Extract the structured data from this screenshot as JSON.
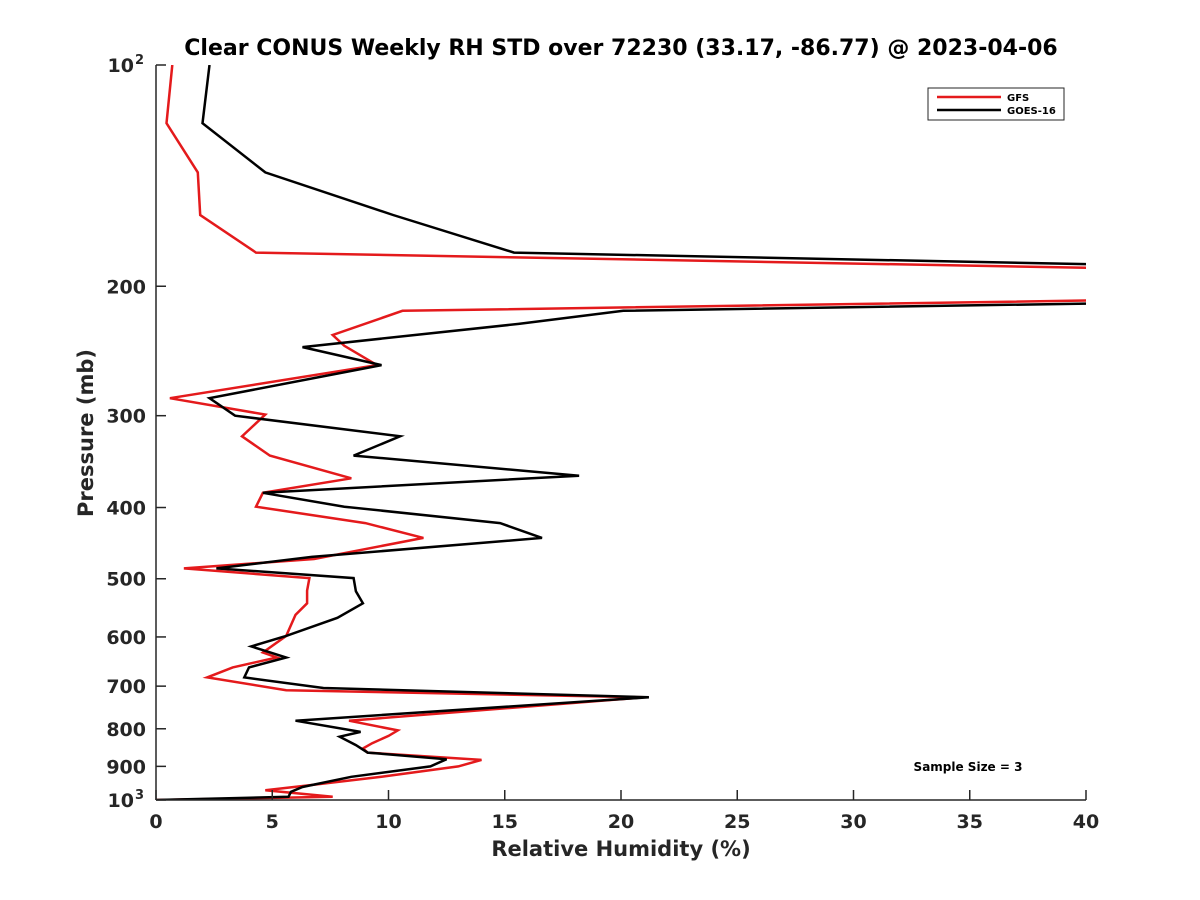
{
  "chart_data": {
    "type": "line",
    "title": "Clear CONUS Weekly RH STD over 72230 (33.17, -86.77) @ 2023-04-06",
    "xlabel": "Relative Humidity (%)",
    "ylabel": "Pressure (mb)",
    "xlim": [
      0,
      40
    ],
    "ylim": [
      100,
      1000
    ],
    "yscale": "log",
    "yreversed": true,
    "grid": false,
    "legend_position": "top-right",
    "xticks": [
      "0",
      "5",
      "10",
      "15",
      "20",
      "25",
      "30",
      "35",
      "40"
    ],
    "xtick_values": [
      0,
      5,
      10,
      15,
      20,
      25,
      30,
      35,
      40
    ],
    "yticks": [
      {
        "value": 100,
        "base": "10",
        "exp": "2"
      },
      {
        "value": 200,
        "label": "200"
      },
      {
        "value": 300,
        "label": "300"
      },
      {
        "value": 400,
        "label": "400"
      },
      {
        "value": 500,
        "label": "500"
      },
      {
        "value": 600,
        "label": "600"
      },
      {
        "value": 700,
        "label": "700"
      },
      {
        "value": 800,
        "label": "800"
      },
      {
        "value": 900,
        "label": "900"
      },
      {
        "value": 1000,
        "base": "10",
        "exp": "3"
      }
    ],
    "annotation": "Sample Size = 3",
    "series": [
      {
        "name": "GFS",
        "color": "#e41a1c",
        "points": [
          [
            0.7,
            100
          ],
          [
            0.45,
            120
          ],
          [
            1.8,
            140
          ],
          [
            1.9,
            160
          ],
          [
            4.3,
            180
          ],
          [
            45,
            190
          ],
          [
            45,
            208
          ],
          [
            10.6,
            216
          ],
          [
            7.6,
            233
          ],
          [
            8.1,
            241
          ],
          [
            9.5,
            256
          ],
          [
            0.6,
            284
          ],
          [
            4.7,
            299
          ],
          [
            3.7,
            320
          ],
          [
            4.9,
            340
          ],
          [
            8.4,
            365
          ],
          [
            4.6,
            382
          ],
          [
            4.3,
            399
          ],
          [
            9.0,
            420
          ],
          [
            11.5,
            440
          ],
          [
            6.8,
            470
          ],
          [
            1.2,
            484
          ],
          [
            6.6,
            499
          ],
          [
            6.5,
            519
          ],
          [
            6.5,
            540
          ],
          [
            6.0,
            560
          ],
          [
            5.6,
            598
          ],
          [
            4.6,
            630
          ],
          [
            5.2,
            640
          ],
          [
            3.3,
            660
          ],
          [
            2.2,
            681
          ],
          [
            5.6,
            709
          ],
          [
            21.0,
            725
          ],
          [
            8.3,
            780
          ],
          [
            10.4,
            804
          ],
          [
            10.0,
            818
          ],
          [
            9.3,
            837
          ],
          [
            8.9,
            851
          ],
          [
            9.1,
            862
          ],
          [
            14.0,
            882
          ],
          [
            13.0,
            900
          ],
          [
            9.7,
            930
          ],
          [
            6.6,
            955
          ],
          [
            4.7,
            970
          ],
          [
            7.6,
            990
          ],
          [
            0,
            1000
          ]
        ]
      },
      {
        "name": "GOES-16",
        "color": "#000000",
        "points": [
          [
            2.3,
            100
          ],
          [
            2.0,
            120
          ],
          [
            4.7,
            140
          ],
          [
            10.2,
            160
          ],
          [
            15.4,
            180
          ],
          [
            45,
            188
          ],
          [
            45,
            210
          ],
          [
            20.1,
            216
          ],
          [
            15.6,
            225
          ],
          [
            6.3,
            242
          ],
          [
            9.7,
            256
          ],
          [
            2.3,
            284
          ],
          [
            3.4,
            300
          ],
          [
            10.5,
            320
          ],
          [
            8.5,
            340
          ],
          [
            18.2,
            362
          ],
          [
            4.6,
            382
          ],
          [
            8.1,
            399
          ],
          [
            14.8,
            420
          ],
          [
            16.6,
            440
          ],
          [
            6.7,
            467
          ],
          [
            2.6,
            484
          ],
          [
            8.5,
            499
          ],
          [
            8.6,
            520
          ],
          [
            8.9,
            540
          ],
          [
            7.8,
            565
          ],
          [
            5.6,
            598
          ],
          [
            4.1,
            618
          ],
          [
            5.6,
            640
          ],
          [
            4.0,
            660
          ],
          [
            3.8,
            681
          ],
          [
            7.2,
            704
          ],
          [
            21.2,
            725
          ],
          [
            6.0,
            780
          ],
          [
            8.8,
            808
          ],
          [
            7.9,
            820
          ],
          [
            8.6,
            842
          ],
          [
            9.1,
            862
          ],
          [
            12.5,
            880
          ],
          [
            11.8,
            900
          ],
          [
            8.4,
            930
          ],
          [
            6.3,
            960
          ],
          [
            5.8,
            975
          ],
          [
            5.7,
            990
          ],
          [
            0,
            1000
          ]
        ]
      }
    ]
  }
}
